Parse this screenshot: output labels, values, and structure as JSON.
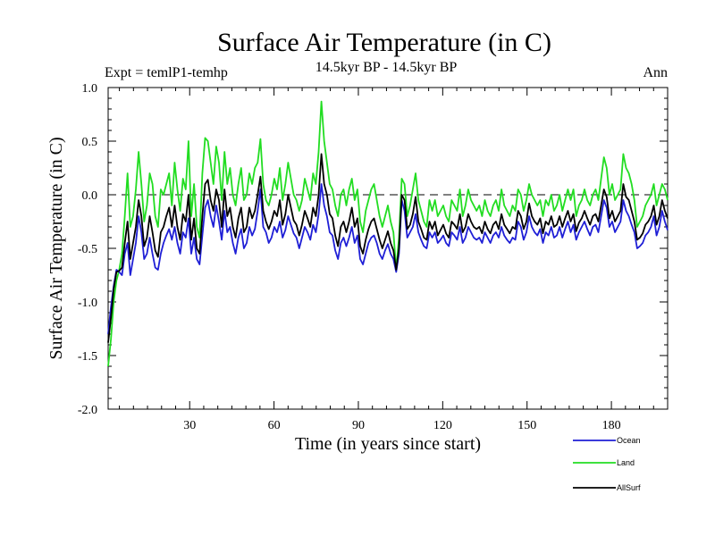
{
  "chart_data": {
    "type": "line",
    "title": "Surface Air Temperature (in C)",
    "subtitle": "14.5kyr BP - 14.5kyr BP",
    "experiment": "Expt = temlP1-temhp",
    "period": "Ann",
    "xlabel": "Time (in years since start)",
    "ylabel": "Surface Air Temperature (in C)",
    "xlim": [
      1,
      200
    ],
    "ylim": [
      -2.0,
      1.0
    ],
    "xticks": [
      30,
      60,
      90,
      120,
      150,
      180
    ],
    "yticks": [
      1.0,
      0.5,
      0.0,
      -0.5,
      -1.0,
      -1.5,
      -2.0
    ],
    "ytick_labels": [
      "1.0",
      "0.5",
      "0.0",
      "-0.5",
      "-1.0",
      "-1.5",
      "-2.0"
    ],
    "zero_line": "dashed",
    "legend_position": "bottom-right",
    "series": [
      {
        "name": "Ocean",
        "color": "#1f1fd6",
        "values": [
          -1.3,
          -1.05,
          -0.85,
          -0.7,
          -0.72,
          -0.75,
          -0.55,
          -0.45,
          -0.75,
          -0.6,
          -0.45,
          -0.2,
          -0.35,
          -0.6,
          -0.55,
          -0.4,
          -0.55,
          -0.68,
          -0.7,
          -0.55,
          -0.45,
          -0.38,
          -0.32,
          -0.42,
          -0.3,
          -0.45,
          -0.55,
          -0.35,
          -0.4,
          -0.22,
          -0.55,
          -0.4,
          -0.6,
          -0.65,
          -0.38,
          -0.12,
          -0.05,
          -0.2,
          -0.3,
          -0.1,
          -0.25,
          -0.42,
          -0.15,
          -0.35,
          -0.3,
          -0.45,
          -0.55,
          -0.4,
          -0.32,
          -0.5,
          -0.45,
          -0.3,
          -0.38,
          -0.32,
          -0.15,
          0.05,
          -0.3,
          -0.35,
          -0.45,
          -0.4,
          -0.3,
          -0.35,
          -0.25,
          -0.4,
          -0.33,
          -0.2,
          -0.28,
          -0.36,
          -0.4,
          -0.5,
          -0.4,
          -0.3,
          -0.35,
          -0.42,
          -0.28,
          -0.35,
          -0.18,
          0.1,
          -0.1,
          -0.2,
          -0.35,
          -0.38,
          -0.52,
          -0.6,
          -0.45,
          -0.4,
          -0.48,
          -0.4,
          -0.3,
          -0.45,
          -0.38,
          -0.6,
          -0.65,
          -0.55,
          -0.45,
          -0.4,
          -0.38,
          -0.45,
          -0.55,
          -0.6,
          -0.52,
          -0.46,
          -0.55,
          -0.6,
          -0.72,
          -0.55,
          -0.05,
          -0.15,
          -0.4,
          -0.35,
          -0.3,
          -0.18,
          -0.35,
          -0.42,
          -0.48,
          -0.5,
          -0.35,
          -0.4,
          -0.35,
          -0.45,
          -0.42,
          -0.38,
          -0.45,
          -0.48,
          -0.35,
          -0.38,
          -0.42,
          -0.3,
          -0.45,
          -0.4,
          -0.3,
          -0.35,
          -0.4,
          -0.42,
          -0.4,
          -0.45,
          -0.35,
          -0.4,
          -0.45,
          -0.38,
          -0.35,
          -0.4,
          -0.3,
          -0.38,
          -0.42,
          -0.45,
          -0.4,
          -0.42,
          -0.25,
          -0.3,
          -0.42,
          -0.35,
          -0.2,
          -0.3,
          -0.35,
          -0.38,
          -0.32,
          -0.45,
          -0.35,
          -0.38,
          -0.3,
          -0.4,
          -0.38,
          -0.3,
          -0.4,
          -0.32,
          -0.25,
          -0.35,
          -0.28,
          -0.42,
          -0.35,
          -0.3,
          -0.25,
          -0.32,
          -0.38,
          -0.3,
          -0.28,
          -0.35,
          -0.2,
          -0.05,
          -0.12,
          -0.3,
          -0.25,
          -0.35,
          -0.3,
          -0.25,
          -0.05,
          -0.15,
          -0.2,
          -0.28,
          -0.35,
          -0.5,
          -0.48,
          -0.45,
          -0.38,
          -0.35,
          -0.3,
          -0.2,
          -0.38,
          -0.3,
          -0.15,
          -0.25,
          -0.33
        ]
      },
      {
        "name": "Land",
        "color": "#22dd22",
        "values": [
          -1.6,
          -1.35,
          -1.0,
          -0.8,
          -0.7,
          -0.55,
          -0.2,
          0.2,
          -0.3,
          -0.2,
          0.05,
          0.4,
          0.1,
          -0.25,
          -0.1,
          0.2,
          0.1,
          -0.2,
          -0.3,
          0.05,
          0.0,
          0.1,
          0.2,
          -0.1,
          0.3,
          0.05,
          -0.15,
          0.15,
          0.05,
          0.5,
          -0.2,
          0.1,
          -0.3,
          -0.4,
          0.2,
          0.53,
          0.5,
          0.3,
          0.1,
          0.45,
          0.3,
          -0.05,
          0.4,
          0.1,
          0.25,
          0.0,
          -0.1,
          0.1,
          0.25,
          -0.05,
          0.0,
          0.2,
          0.1,
          0.25,
          0.3,
          0.52,
          0.1,
          -0.05,
          -0.1,
          0.0,
          0.15,
          0.05,
          0.25,
          -0.05,
          0.1,
          0.3,
          0.15,
          0.0,
          -0.05,
          -0.15,
          -0.05,
          0.15,
          0.05,
          -0.05,
          0.2,
          0.1,
          0.4,
          0.87,
          0.5,
          0.3,
          0.1,
          0.05,
          -0.1,
          -0.2,
          0.0,
          0.05,
          -0.1,
          0.05,
          0.15,
          -0.05,
          0.05,
          -0.25,
          -0.35,
          -0.15,
          -0.05,
          0.05,
          0.1,
          -0.05,
          -0.2,
          -0.3,
          -0.2,
          -0.1,
          -0.25,
          -0.35,
          -0.7,
          -0.4,
          0.15,
          0.1,
          -0.2,
          -0.1,
          0.05,
          0.2,
          -0.05,
          -0.15,
          -0.25,
          -0.3,
          -0.05,
          -0.15,
          -0.05,
          -0.2,
          -0.15,
          -0.1,
          -0.2,
          -0.25,
          -0.05,
          -0.1,
          -0.15,
          0.05,
          -0.2,
          -0.1,
          0.05,
          -0.05,
          -0.1,
          -0.15,
          -0.1,
          -0.2,
          -0.05,
          -0.15,
          -0.2,
          -0.1,
          -0.05,
          -0.15,
          0.05,
          -0.1,
          -0.15,
          -0.2,
          -0.1,
          -0.15,
          0.05,
          0.0,
          -0.15,
          -0.05,
          0.1,
          0.0,
          -0.05,
          -0.1,
          -0.05,
          -0.2,
          -0.05,
          -0.1,
          0.0,
          -0.15,
          -0.1,
          0.0,
          -0.15,
          -0.05,
          0.05,
          -0.05,
          0.05,
          -0.2,
          -0.1,
          -0.05,
          0.05,
          -0.05,
          -0.1,
          0.0,
          0.05,
          -0.05,
          0.15,
          0.35,
          0.25,
          0.0,
          0.1,
          -0.05,
          0.0,
          0.05,
          0.38,
          0.25,
          0.2,
          0.1,
          -0.05,
          -0.3,
          -0.25,
          -0.2,
          -0.1,
          -0.05,
          0.0,
          0.1,
          -0.1,
          0.0,
          0.1,
          0.05,
          -0.05
        ]
      },
      {
        "name": "AllSurf",
        "color": "#000000",
        "values": [
          -1.38,
          -1.15,
          -0.88,
          -0.72,
          -0.71,
          -0.68,
          -0.45,
          -0.25,
          -0.6,
          -0.45,
          -0.3,
          -0.05,
          -0.2,
          -0.48,
          -0.4,
          -0.2,
          -0.35,
          -0.52,
          -0.58,
          -0.35,
          -0.3,
          -0.2,
          -0.12,
          -0.3,
          -0.1,
          -0.3,
          -0.42,
          -0.18,
          -0.25,
          0.0,
          -0.42,
          -0.22,
          -0.5,
          -0.55,
          -0.2,
          0.1,
          0.14,
          -0.05,
          -0.15,
          0.05,
          -0.05,
          -0.3,
          0.05,
          -0.2,
          -0.12,
          -0.3,
          -0.4,
          -0.22,
          -0.12,
          -0.35,
          -0.3,
          -0.12,
          -0.22,
          -0.15,
          0.0,
          0.17,
          -0.15,
          -0.25,
          -0.32,
          -0.25,
          -0.15,
          -0.2,
          -0.05,
          -0.28,
          -0.18,
          0.0,
          -0.12,
          -0.24,
          -0.28,
          -0.38,
          -0.28,
          -0.15,
          -0.22,
          -0.3,
          -0.12,
          -0.2,
          0.0,
          0.38,
          0.1,
          0.0,
          -0.18,
          -0.22,
          -0.38,
          -0.48,
          -0.3,
          -0.25,
          -0.35,
          -0.25,
          -0.12,
          -0.3,
          -0.22,
          -0.48,
          -0.55,
          -0.42,
          -0.32,
          -0.25,
          -0.22,
          -0.32,
          -0.42,
          -0.5,
          -0.42,
          -0.34,
          -0.45,
          -0.52,
          -0.7,
          -0.5,
          0.0,
          -0.05,
          -0.32,
          -0.28,
          -0.18,
          -0.02,
          -0.25,
          -0.32,
          -0.4,
          -0.42,
          -0.25,
          -0.32,
          -0.25,
          -0.38,
          -0.33,
          -0.28,
          -0.36,
          -0.4,
          -0.25,
          -0.28,
          -0.32,
          -0.18,
          -0.35,
          -0.3,
          -0.18,
          -0.25,
          -0.3,
          -0.32,
          -0.3,
          -0.36,
          -0.25,
          -0.32,
          -0.36,
          -0.28,
          -0.25,
          -0.32,
          -0.18,
          -0.28,
          -0.32,
          -0.36,
          -0.3,
          -0.32,
          -0.15,
          -0.2,
          -0.32,
          -0.25,
          -0.08,
          -0.2,
          -0.25,
          -0.28,
          -0.22,
          -0.36,
          -0.25,
          -0.28,
          -0.2,
          -0.3,
          -0.28,
          -0.2,
          -0.3,
          -0.22,
          -0.15,
          -0.25,
          -0.18,
          -0.34,
          -0.26,
          -0.22,
          -0.15,
          -0.22,
          -0.28,
          -0.2,
          -0.18,
          -0.25,
          -0.1,
          0.05,
          -0.02,
          -0.22,
          -0.15,
          -0.25,
          -0.2,
          -0.15,
          0.1,
          -0.02,
          -0.05,
          -0.15,
          -0.25,
          -0.42,
          -0.4,
          -0.36,
          -0.28,
          -0.25,
          -0.2,
          -0.1,
          -0.28,
          -0.2,
          -0.05,
          -0.15,
          -0.22
        ]
      }
    ]
  }
}
